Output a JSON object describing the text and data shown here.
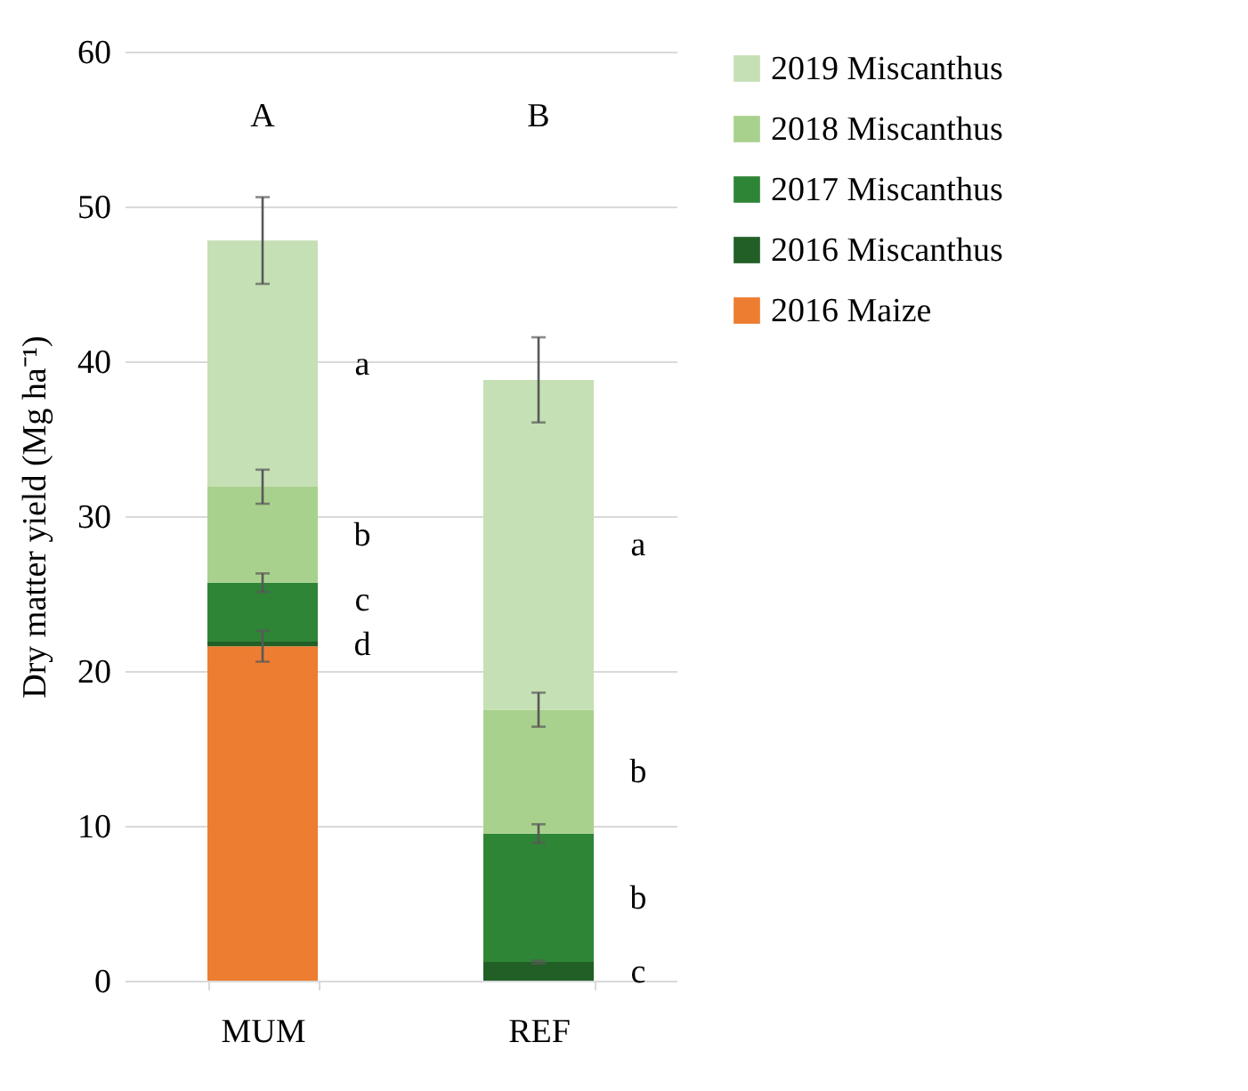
{
  "chart_data": {
    "type": "bar",
    "stacked": true,
    "ylabel": "Dry matter yield (Mg ha⁻¹)",
    "categories": [
      "MUM",
      "REF"
    ],
    "ylim": [
      0,
      60
    ],
    "yticks": [
      0,
      10,
      20,
      30,
      40,
      50,
      60
    ],
    "grid": "y",
    "legend": "right",
    "series": [
      {
        "name": "2016 Maize",
        "color": "#ed7d31",
        "values": [
          21.6,
          null
        ],
        "errors": [
          1.0,
          null
        ]
      },
      {
        "name": "2016 Miscanthus",
        "color": "#215f26",
        "values": [
          0.3,
          1.2
        ],
        "errors": [
          null,
          0.1
        ]
      },
      {
        "name": "2017 Miscanthus",
        "color": "#2e8536",
        "values": [
          3.8,
          8.3
        ],
        "errors": [
          0.6,
          0.6
        ]
      },
      {
        "name": "2018 Miscanthus",
        "color": "#a9d18e",
        "values": [
          6.2,
          8.0
        ],
        "errors": [
          1.1,
          1.1
        ]
      },
      {
        "name": "2019 Miscanthus",
        "color": "#c5e0b4",
        "values": [
          15.9,
          21.3
        ],
        "errors": [
          2.8,
          2.75
        ]
      }
    ],
    "annotations": [
      "A",
      "B",
      "a",
      "b",
      "c",
      "d",
      "a",
      "b",
      "b",
      "c"
    ]
  }
}
